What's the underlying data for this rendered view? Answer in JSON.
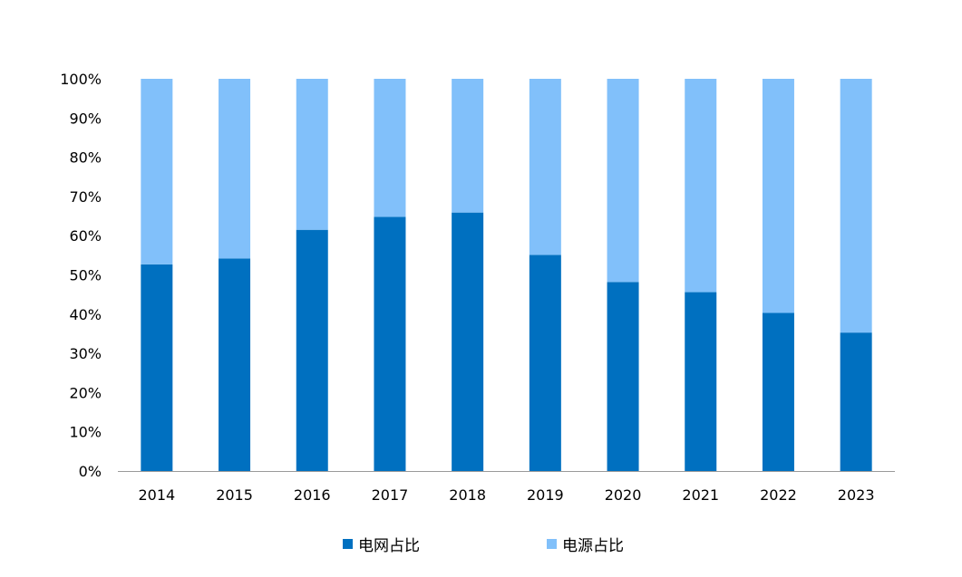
{
  "chart_data": {
    "type": "bar",
    "stacked": true,
    "categories": [
      "2014",
      "2015",
      "2016",
      "2017",
      "2018",
      "2019",
      "2020",
      "2021",
      "2022",
      "2023"
    ],
    "series": [
      {
        "name": "电网占比",
        "color": "#0070C0",
        "values": [
          52.7,
          54.2,
          61.5,
          64.8,
          65.9,
          55.1,
          48.2,
          45.6,
          40.3,
          35.3
        ]
      },
      {
        "name": "电源占比",
        "color": "#81C0FA",
        "values": [
          47.3,
          45.8,
          38.5,
          35.2,
          34.1,
          44.9,
          51.8,
          54.4,
          59.7,
          64.7
        ]
      }
    ],
    "y_ticks": [
      "0%",
      "10%",
      "20%",
      "30%",
      "40%",
      "50%",
      "60%",
      "70%",
      "80%",
      "90%",
      "100%"
    ],
    "ylim": [
      0,
      100
    ],
    "grid": false,
    "legend_position": "bottom"
  }
}
